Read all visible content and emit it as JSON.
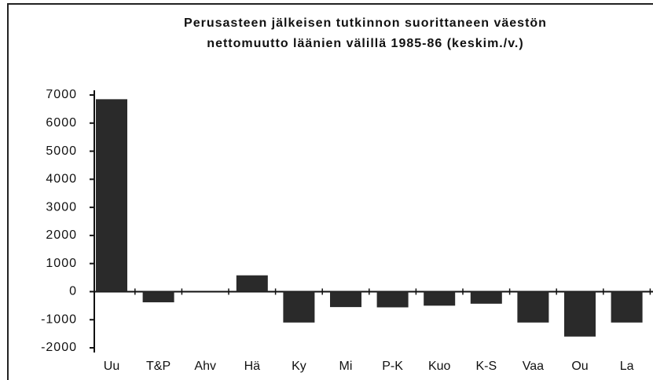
{
  "chart_data": {
    "type": "bar",
    "title": [
      "Perusasteen jälkeisen tutkinnon suorittaneen väestön",
      "nettomuutto läänien välillä 1985-86 (keskim./v.)"
    ],
    "categories": [
      "Uu",
      "T&P",
      "Ahv",
      "Hä",
      "Ky",
      "Mi",
      "P-K",
      "Kuo",
      "K-S",
      "Vaa",
      "Ou",
      "La"
    ],
    "values": [
      6850,
      -380,
      0,
      580,
      -1100,
      -550,
      -560,
      -500,
      -430,
      -1100,
      -1600,
      -1100
    ],
    "color": "#2a2a2a",
    "ylim": [
      -2000,
      7000
    ],
    "yticks": [
      -2000,
      -1000,
      0,
      1000,
      2000,
      3000,
      4000,
      5000,
      6000,
      7000
    ],
    "grid": false
  }
}
